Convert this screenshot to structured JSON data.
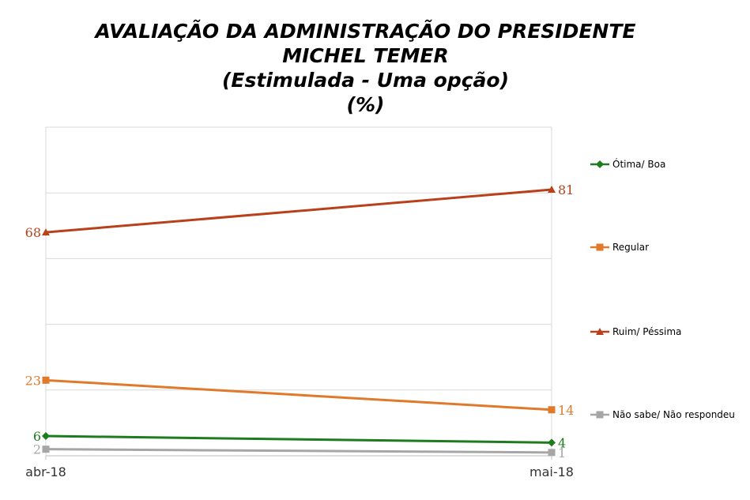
{
  "chart_data": {
    "type": "line",
    "title_lines": [
      "AVALIAÇÃO DA ADMINISTRAÇÃO DO PRESIDENTE",
      "MICHEL TEMER",
      "(Estimulada - Uma opção)",
      "(%)"
    ],
    "categories": [
      "abr-18",
      "mai-18"
    ],
    "ylim": [
      0,
      100
    ],
    "grid": true,
    "legend_position": "right",
    "series": [
      {
        "name": "Ótima/ Boa",
        "values": [
          6,
          4
        ],
        "labels": [
          "6",
          "4"
        ],
        "color": "#1e7b1e",
        "marker": "diamond"
      },
      {
        "name": "Regular",
        "values": [
          23,
          14
        ],
        "labels": [
          "23",
          "14"
        ],
        "color": "#e07a2a",
        "marker": "square"
      },
      {
        "name": "Ruim/ Péssima",
        "values": [
          68,
          81
        ],
        "labels": [
          "68",
          "81"
        ],
        "color": "#b8401a",
        "marker": "triangle"
      },
      {
        "name": "Não sabe/ Não respondeu",
        "values": [
          2,
          1
        ],
        "labels": [
          "2",
          "1"
        ],
        "color": "#a6a6a6",
        "marker": "square"
      }
    ]
  }
}
